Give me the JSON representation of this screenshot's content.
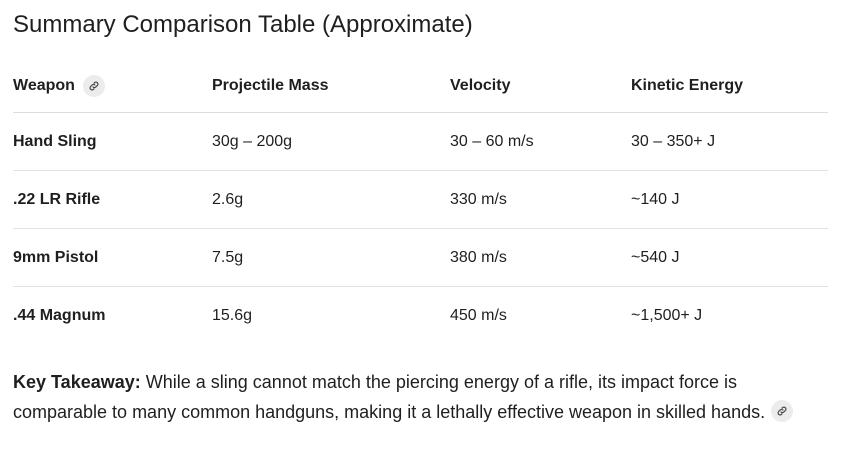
{
  "title": "Summary Comparison Table (Approximate)",
  "table": {
    "headers": [
      "Weapon",
      "Projectile Mass",
      "Velocity",
      "Kinetic Energy"
    ],
    "rows": [
      [
        "Hand Sling",
        "30g – 200g",
        "30 – 60 m/s",
        "30 – 350+ J"
      ],
      [
        ".22 LR Rifle",
        "2.6g",
        "330 m/s",
        "~140 J"
      ],
      [
        "9mm Pistol",
        "7.5g",
        "380 m/s",
        "~540 J"
      ],
      [
        ".44 Magnum",
        "15.6g",
        "450 m/s",
        "~1,500+ J"
      ]
    ]
  },
  "takeaway": {
    "label": "Key Takeaway:",
    "text": " While a sling cannot match the piercing energy of a rifle, its impact force is comparable to many common handguns, making it a lethally effective weapon in skilled hands."
  },
  "icons": {
    "link": "link-icon"
  },
  "colors": {
    "text": "#1f1f1f",
    "divider": "#e2e2e2",
    "chip": "#ececec"
  }
}
